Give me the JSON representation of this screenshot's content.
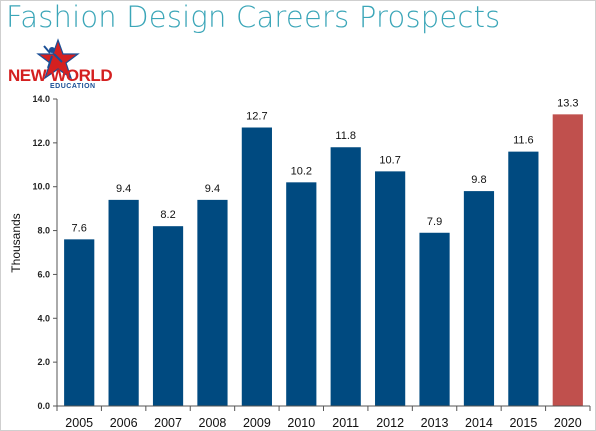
{
  "header": {
    "title": "Fashion Design Careers Prospects"
  },
  "logo": {
    "text": "NEW WORLD",
    "subtext": "EDUCATION",
    "star_color": "#d42020",
    "accent_color": "#1a4f96"
  },
  "chart_data": {
    "type": "bar",
    "title": "Fashion Design Careers Prospects",
    "xlabel": "",
    "ylabel": "Thousands",
    "categories": [
      "2005",
      "2006",
      "2007",
      "2008",
      "2009",
      "2010",
      "2011",
      "2012",
      "2013",
      "2014",
      "2015",
      "2020"
    ],
    "values": [
      7.6,
      9.4,
      8.2,
      9.4,
      12.7,
      10.2,
      11.8,
      10.7,
      7.9,
      9.8,
      11.6,
      13.3
    ],
    "data_labels": [
      "7.6",
      "9.4",
      "8.2",
      "9.4",
      "12.7",
      "10.2",
      "11.8",
      "10.7",
      "7.9",
      "9.8",
      "11.6",
      "13.3"
    ],
    "ylim": [
      0,
      14
    ],
    "yticks": [
      0,
      2,
      4,
      6,
      8,
      10,
      12,
      14
    ],
    "ytick_labels": [
      "0.0",
      "2.0",
      "4.0",
      "6.0",
      "8.0",
      "10.0",
      "12.0",
      "14.0"
    ],
    "grid": false,
    "legend": "none",
    "bar_color": "#004a80",
    "highlight_color": "#c0504d",
    "highlight_category": "2020"
  }
}
